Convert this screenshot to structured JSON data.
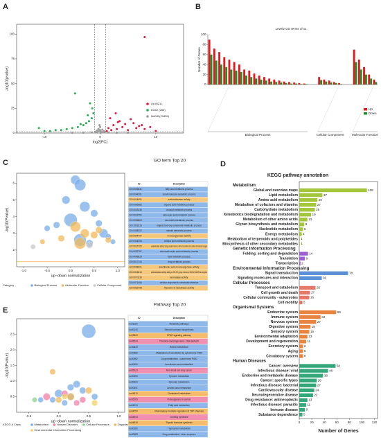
{
  "chart_data": [
    {
      "type": "scatter",
      "panel": "A",
      "xlabel": "log2(FC)",
      "ylabel": "-log10(pvalue)",
      "xlim": [
        -15,
        15
      ],
      "xticks": [
        -10,
        0,
        10
      ],
      "ylim": [
        0,
        110
      ],
      "yticks": [
        0,
        25,
        50,
        75,
        100
      ],
      "vlines": [
        -1,
        1
      ],
      "hline": 1.3,
      "legend": "lower right",
      "series": [
        {
          "name": "Up (821)",
          "color": "#e8173a",
          "x": [
            1.2,
            1.5,
            2,
            2.4,
            3,
            3.5,
            4,
            4.5,
            5,
            6,
            6.5,
            7,
            8,
            9,
            10,
            1.8,
            2.8,
            3.2,
            5.5,
            7.5,
            8
          ],
          "values": [
            2,
            5,
            3,
            8,
            4,
            12,
            6,
            9,
            3,
            10,
            5,
            7,
            4,
            6,
            2,
            15,
            20,
            11,
            14,
            8,
            97
          ]
        },
        {
          "name": "Down (266)",
          "color": "#22b14c",
          "x": [
            -1.2,
            -1.5,
            -2,
            -2.5,
            -3,
            -4,
            -5,
            -6,
            -7,
            -8,
            -9,
            -10,
            -1.8,
            -2.2,
            -3.5,
            -1.4,
            -4.5,
            -11
          ],
          "values": [
            20,
            15,
            12,
            10,
            8,
            6,
            5,
            4,
            3,
            3,
            2,
            2,
            30,
            18,
            9,
            25,
            40,
            5
          ]
        },
        {
          "name": "NoDiff (23435)",
          "color": "#9a9a9a",
          "x": [
            -0.8,
            -0.5,
            -0.2,
            0,
            0.2,
            0.5,
            0.8,
            -0.6,
            0.4,
            0.1,
            -0.3,
            0.7,
            -1.5,
            1.5,
            -3,
            3,
            -5,
            5,
            0,
            -0.1
          ],
          "values": [
            1,
            0.5,
            2,
            3,
            1.5,
            0.8,
            1.2,
            2.5,
            3.5,
            0.3,
            4,
            1.8,
            0.5,
            0.4,
            0.3,
            0.2,
            0.2,
            0.3,
            6,
            8
          ]
        }
      ]
    },
    {
      "type": "grouped-bar",
      "panel": "B",
      "title": "Level2 GO terms of xx",
      "ylabel": "Number of Genes",
      "ylim": [
        0,
        100
      ],
      "yticks": [
        0,
        20,
        40,
        60,
        80,
        100
      ],
      "series": [
        {
          "name": "Up",
          "color": "#e31a1c"
        },
        {
          "name": "Down",
          "color": "#1f8f2e"
        }
      ],
      "groups": [
        {
          "name": "Biological Process",
          "series_values": [
            [
              90,
              72,
              65,
              55,
              50,
              45,
              40,
              30,
              28,
              22,
              18,
              15,
              12,
              10,
              8,
              6,
              5,
              4,
              3,
              2
            ],
            [
              60,
              48,
              40,
              35,
              30,
              28,
              25,
              18,
              15,
              12,
              10,
              8,
              6,
              5,
              4,
              3,
              2,
              2,
              1,
              1
            ]
          ]
        },
        {
          "name": "Cellular Component",
          "series_values": [
            [
              15,
              10,
              8,
              5,
              3
            ],
            [
              9,
              6,
              4,
              3,
              1
            ]
          ]
        },
        {
          "name": "Molecular Function",
          "series_values": [
            [
              70,
              50,
              35,
              20,
              10
            ],
            [
              45,
              30,
              20,
              12,
              5
            ]
          ]
        }
      ]
    },
    {
      "type": "bubble",
      "panel": "C",
      "title": "GO term Top 20",
      "xlabel": "up−down normalization",
      "ylabel": "-log10(Pvalue)",
      "xlim": [
        -1.15,
        1.15
      ],
      "xticks": [
        {
          "value": -1,
          "label": "-1.0"
        },
        -0.5,
        {
          "value": 0,
          "label": "0.0"
        },
        0.5,
        {
          "value": 1,
          "label": "1.0"
        }
      ],
      "ylim": [
        1,
        6.6
      ],
      "yticks": [
        2,
        3,
        4,
        5,
        6
      ],
      "hline": 1.3,
      "legend_title": "Category",
      "series": [
        {
          "name": "Biological Process",
          "color": "#7aaee8",
          "x": [
            0.1,
            0.2,
            -0.1,
            0.3,
            0.5,
            0.0,
            -0.3,
            0.7,
            0.8,
            0.2,
            0.4,
            -0.5,
            0.9,
            0.6
          ],
          "values": [
            6.2,
            5.9,
            5.0,
            4.6,
            4.2,
            3.8,
            3.5,
            3.0,
            2.8,
            2.6,
            2.4,
            3.3,
            2.5,
            3.6
          ],
          "sizes": [
            20,
            30,
            15,
            25,
            12,
            40,
            10,
            18,
            8,
            35,
            12,
            8,
            6,
            10
          ]
        },
        {
          "name": "Molecular Function",
          "color": "#f2b85a",
          "x": [
            0.1,
            0.3,
            0.5,
            -0.2,
            0.2,
            0.8,
            0.6,
            -0.6
          ],
          "values": [
            3.4,
            3.0,
            2.9,
            2.7,
            2.4,
            2.6,
            3.2,
            2.5
          ],
          "sizes": [
            25,
            18,
            12,
            10,
            30,
            8,
            10,
            6
          ]
        },
        {
          "name": "Cellular Component",
          "color": "#c8c8c8",
          "x": [
            0.4,
            -0.8
          ],
          "values": [
            2.3,
            2.2
          ],
          "sizes": [
            10,
            6
          ]
        }
      ],
      "table": {
        "header": [
          "ID",
          "Description"
        ],
        "rows": [
          [
            "GO:0006631",
            "fatty acid metabolic process"
          ],
          [
            "GO:0044281",
            "small molecule metabolic process"
          ],
          [
            "GO:0016491",
            "oxidoreductase activity"
          ],
          [
            "GO:0006082",
            "organic acid metabolic process"
          ],
          [
            "GO:0043436",
            "oxoacid metabolic process"
          ],
          [
            "GO:0019752",
            "carboxylic acid metabolic process"
          ],
          [
            "GO:0006805",
            "xenobiotic metabolic process"
          ],
          [
            "GO:1901615",
            "organic hydroxy compound metabolic process"
          ],
          [
            "GO:0008202",
            "steroid metabolic process"
          ],
          [
            "GO:0004497",
            "monooxygenase activity"
          ],
          [
            "GO:0044255",
            "cellular lipid metabolic process"
          ],
          [
            "GO:0016705",
            "oxidoreductase activity, acting on paired donors, with incorporation or reduction of molecular oxygen"
          ],
          [
            "GO:0032787",
            "monocarboxylic acid metabolic process"
          ],
          [
            "GO:0006629",
            "lipid metabolic process"
          ],
          [
            "GO:0017144",
            "drug metabolic process"
          ],
          [
            "GO:0008391",
            "arachidonic acid monooxygenase activity"
          ],
          [
            "GO:0016616",
            "oxidoreductase activity, acting on CH-OH group of donors, NAD or NADP as acceptor"
          ],
          [
            "GO:0070330",
            "aromatase activity"
          ],
          [
            "GO:0071466",
            "cellular response to xenobiotic stimulus"
          ],
          [
            "GO:0033798",
            "thyroxine 5'-deiodinase activity"
          ]
        ],
        "row_colors": [
          "#8fb8ea",
          "#8fb8ea",
          "#f5c77a",
          "#8fb8ea",
          "#8fb8ea",
          "#8fb8ea",
          "#8fb8ea",
          "#8fb8ea",
          "#8fb8ea",
          "#f5c77a",
          "#8fb8ea",
          "#f5c77a",
          "#8fb8ea",
          "#8fb8ea",
          "#8fb8ea",
          "#f5c77a",
          "#f5c77a",
          "#f5c77a",
          "#8fb8ea",
          "#f5c77a"
        ]
      }
    },
    {
      "type": "hbar-groups",
      "panel": "D",
      "title": "KEGG pathway annotation",
      "xlabel": "Number of Genes",
      "xlim": [
        0,
        125
      ],
      "xticks": [
        0,
        20,
        40,
        60,
        80,
        100,
        120
      ],
      "groups": [
        {
          "name": "Metabolism",
          "color": "#a3c539",
          "categories": [
            "Global and overview maps",
            "Lipid metabolism",
            "Amino acid metabolism",
            "Metabolism of cofactors and vitamins",
            "Carbohydrate metabolism",
            "Xenobiotics biodegradation and metabolism",
            "Metabolism of other amino acids",
            "Glycan biosynthesis and metabolism",
            "Nucleotide metabolism",
            "Energy metabolism",
            "Metabolism of terpenoids and polyketides",
            "Biosynthesis of other secondary metabolites"
          ],
          "values": [
            108,
            37,
            29,
            27,
            25,
            19,
            13,
            8,
            6,
            4,
            1,
            1
          ]
        },
        {
          "name": "Genetic Information Processing",
          "color": "#9b5fd0",
          "categories": [
            "Folding, sorting and degradation",
            "Translation",
            "Transcription"
          ],
          "values": [
            14,
            9,
            2
          ]
        },
        {
          "name": "Environmental Information Processing",
          "color": "#5b8fd6",
          "categories": [
            "Signal transduction",
            "Signaling molecules and interaction"
          ],
          "values": [
            78,
            36
          ]
        },
        {
          "name": "Cellular Processes",
          "color": "#e6786a",
          "categories": [
            "Transport and catabolism",
            "Cell growth and death",
            "Cellular community - eukaryotes",
            "Cell motility"
          ],
          "values": [
            26,
            17,
            16,
            5
          ]
        },
        {
          "name": "Organismal Systems",
          "color": "#e8843f",
          "categories": [
            "Endocrine system",
            "Immune system",
            "Nervous system",
            "Digestive system",
            "Sensory system",
            "Environmental adaptation",
            "Development and regeneration",
            "Excretory system",
            "Aging",
            "Circulatory system"
          ],
          "values": [
            59,
            34,
            27,
            18,
            16,
            13,
            11,
            6,
            6,
            6
          ]
        },
        {
          "name": "Human Diseases",
          "color": "#33a77a",
          "categories": [
            "Cancer: overview",
            "Infectious disease: viral",
            "Endocrine and metabolic disease",
            "Cancer: specific types",
            "Infectious disease: bacterial",
            "Cardiovascular disease",
            "Neurodegenerative disease",
            "Drug resistance: antineoplastic",
            "Infectious disease: parasitic",
            "Immune disease",
            "Substance dependence"
          ],
          "values": [
            58,
            46,
            38,
            28,
            27,
            24,
            22,
            13,
            11,
            9,
            5
          ]
        }
      ]
    },
    {
      "type": "bubble",
      "panel": "E",
      "title": "Pathway Top 20",
      "xlabel": "up−down normalization",
      "ylabel": "-log10(Pvalue)",
      "xlim": [
        -0.7,
        1.1
      ],
      "xticks": [
        -0.5,
        {
          "value": 0,
          "label": "0.0"
        },
        0.5,
        {
          "value": 1,
          "label": "1.0"
        }
      ],
      "ylim": [
        0,
        3
      ],
      "yticks": [
        0.5,
        {
          "value": 1,
          "label": "1.0"
        },
        1.5,
        {
          "value": 2,
          "label": "2.0"
        },
        2.5
      ],
      "legend_title": "KEGG A Class",
      "series": [
        {
          "name": "Metabolism",
          "color": "#7aaee8",
          "x": [
            0.5,
            0.0,
            0.2,
            0.4,
            -0.1,
            0.3,
            0.6,
            0.1,
            0.2,
            -0.3
          ],
          "values": [
            2.6,
            0.6,
            0.5,
            0.7,
            0.4,
            0.9,
            0.5,
            0.3,
            0.8,
            0.4
          ],
          "sizes": [
            45,
            15,
            12,
            10,
            8,
            12,
            9,
            8,
            10,
            7
          ]
        },
        {
          "name": "Human Diseases",
          "color": "#f07fa8",
          "x": [
            0.1,
            -0.2,
            0.3,
            0.4
          ],
          "values": [
            0.6,
            0.5,
            0.3,
            0.4
          ],
          "sizes": [
            10,
            12,
            8,
            9
          ]
        },
        {
          "name": "Cellular Processes",
          "color": "#8fd18f",
          "x": [
            -0.4
          ],
          "values": [
            0.4
          ],
          "sizes": [
            6
          ]
        },
        {
          "name": "Organismal Systems",
          "color": "#f2b85a",
          "x": [
            -0.1,
            0.2,
            0.5,
            0.0
          ],
          "values": [
            1.3,
            0.5,
            0.7,
            0.4
          ],
          "sizes": [
            8,
            12,
            10,
            9
          ]
        },
        {
          "name": "Environmental Information Processing",
          "color": "#f0d060",
          "x": [
            0.6,
            0.1
          ],
          "values": [
            0.3,
            0.5
          ],
          "sizes": [
            8,
            7
          ]
        }
      ],
      "table": {
        "header": [
          "ID",
          "Description"
        ],
        "rows": [
          [
            "ko01100",
            "Metabolic pathways"
          ],
          [
            "ko00140",
            "Steroid hormone biosynthesis"
          ],
          [
            "ko03320",
            "PPAR signaling pathway"
          ],
          [
            "ko05204",
            "Chemical carcinogenesis - DNA adducts"
          ],
          [
            "ko00830",
            "Retinol metabolism"
          ],
          [
            "ko00980",
            "Metabolism of xenobiotics by cytochrome P450"
          ],
          [
            "ko00982",
            "Drug metabolism - cytochrome P450"
          ],
          [
            "ko00590",
            "Arachidonic acid metabolism"
          ],
          [
            "ko05223",
            "Non-small cell lung cancer"
          ],
          [
            "ko00350",
            "Tyrosine metabolism"
          ],
          [
            "ko00620",
            "Pyruvate metabolism"
          ],
          [
            "ko00591",
            "Linoleic acid metabolism"
          ],
          [
            "ko04979",
            "Cholesterol metabolism"
          ],
          [
            "ko05205",
            "Proteoglycans in cancer"
          ],
          [
            "ko01212",
            "Fatty acid metabolism"
          ],
          [
            "ko04750",
            "Inflammatory mediator regulation of TRP channels"
          ],
          [
            "ko04934",
            "Cushing syndrome"
          ],
          [
            "ko04918",
            "Thyroid hormone synthesis"
          ],
          [
            "ko00380",
            "Tryptophan metabolism"
          ],
          [
            "ko00983",
            "Drug metabolism - other enzymes"
          ]
        ],
        "row_colors": [
          "#8fb8ea",
          "#8fb8ea",
          "#f5bd6b",
          "#f08fb0",
          "#8fb8ea",
          "#8fb8ea",
          "#8fb8ea",
          "#8fb8ea",
          "#f08fb0",
          "#8fb8ea",
          "#8fb8ea",
          "#8fb8ea",
          "#f5bd6b",
          "#f08fb0",
          "#8fb8ea",
          "#f5bd6b",
          "#f08fb0",
          "#f5bd6b",
          "#8fb8ea",
          "#8fb8ea"
        ]
      }
    }
  ]
}
